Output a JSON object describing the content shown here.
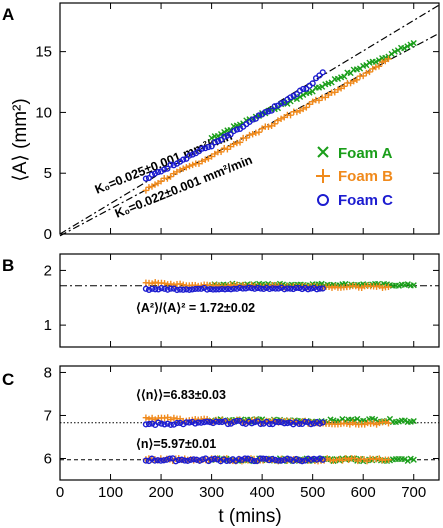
{
  "chart_data": [
    {
      "panel": "A",
      "type": "scatter",
      "ylabel": "⟨A⟩ (mm²)",
      "xlim": [
        0,
        750
      ],
      "ylim": [
        0,
        19
      ],
      "yticks": [
        0,
        5,
        10,
        15
      ],
      "series": [
        {
          "name": "Foam A",
          "marker": "x",
          "color": "#1a9e1a",
          "x": [
            300,
            350,
            400,
            450,
            500,
            550,
            600,
            650,
            700
          ],
          "y": [
            7.9,
            8.9,
            9.9,
            10.8,
            11.8,
            12.8,
            13.8,
            14.7,
            15.7
          ]
        },
        {
          "name": "Foam B",
          "marker": "+",
          "color": "#f08a1c",
          "x": [
            170,
            200,
            250,
            300,
            350,
            400,
            450,
            500,
            550,
            600,
            650
          ],
          "y": [
            3.6,
            4.4,
            5.4,
            6.4,
            7.5,
            8.6,
            9.7,
            10.8,
            11.9,
            13.1,
            14.4
          ]
        },
        {
          "name": "Foam C",
          "marker": "o",
          "color": "#1c1cd0",
          "x": [
            170,
            200,
            250,
            300,
            350,
            400,
            450,
            500,
            520
          ],
          "y": [
            4.5,
            5.2,
            6.3,
            7.3,
            8.5,
            9.8,
            11.0,
            12.4,
            13.3
          ]
        }
      ],
      "fits": [
        {
          "label": "K₀=0.025±0.001 mm²/min",
          "slope": 0.0251,
          "intercept": 0.0,
          "style": "dash-dot"
        },
        {
          "label": "K₀=0.022±0.001 mm²/min",
          "slope": 0.0222,
          "intercept": -0.15,
          "style": "dash-dot"
        }
      ],
      "annotations": [
        "K₀=0.025±0.001 mm²/min",
        "K₀=0.022±0.001 mm²/min"
      ]
    },
    {
      "panel": "B",
      "type": "scatter",
      "ylabel": "",
      "xlim": [
        0,
        750
      ],
      "ylim": [
        0.6,
        2.3
      ],
      "yticks": [
        1,
        2
      ],
      "reference_line": 1.72,
      "series": [
        {
          "name": "Foam A",
          "x": [
            300,
            400,
            500,
            600,
            700
          ],
          "y": [
            1.74,
            1.74,
            1.74,
            1.74,
            1.73
          ]
        },
        {
          "name": "Foam B",
          "x": [
            170,
            250,
            350,
            450,
            550,
            650
          ],
          "y": [
            1.78,
            1.73,
            1.72,
            1.71,
            1.7,
            1.7
          ]
        },
        {
          "name": "Foam C",
          "x": [
            170,
            250,
            350,
            450,
            520
          ],
          "y": [
            1.66,
            1.66,
            1.67,
            1.67,
            1.67
          ]
        }
      ],
      "annotation": "⟨A²⟩/⟨A⟩² = 1.72±0.02"
    },
    {
      "panel": "C",
      "type": "scatter",
      "ylabel": "",
      "xlabel": "t (mins)",
      "xlim": [
        0,
        750
      ],
      "ylim": [
        5.5,
        8.15
      ],
      "yticks": [
        6,
        7,
        8
      ],
      "xticks": [
        0,
        100,
        200,
        300,
        400,
        500,
        600,
        700
      ],
      "reference_lines": [
        6.83,
        5.97
      ],
      "series": [
        {
          "name": "Foam A ⟨⟨n⟩⟩",
          "x": [
            300,
            400,
            500,
            600,
            700
          ],
          "y": [
            6.9,
            6.88,
            6.86,
            6.9,
            6.87
          ]
        },
        {
          "name": "Foam B ⟨⟨n⟩⟩",
          "x": [
            170,
            250,
            350,
            450,
            550,
            650
          ],
          "y": [
            6.95,
            6.9,
            6.87,
            6.85,
            6.82,
            6.82
          ]
        },
        {
          "name": "Foam C ⟨⟨n⟩⟩",
          "x": [
            170,
            250,
            350,
            450,
            520
          ],
          "y": [
            6.8,
            6.82,
            6.84,
            6.82,
            6.84
          ]
        },
        {
          "name": "Foam A ⟨n⟩",
          "x": [
            300,
            400,
            500,
            600,
            700
          ],
          "y": [
            5.98,
            5.97,
            5.97,
            5.97,
            5.97
          ]
        },
        {
          "name": "Foam B ⟨n⟩",
          "x": [
            170,
            300,
            450,
            650
          ],
          "y": [
            5.98,
            5.97,
            5.97,
            5.97
          ]
        },
        {
          "name": "Foam C ⟨n⟩",
          "x": [
            170,
            300,
            450,
            520
          ],
          "y": [
            5.97,
            5.97,
            5.97,
            5.97
          ]
        }
      ],
      "annotations": [
        "⟨⟨n⟩⟩=6.83±0.03",
        "⟨n⟩=5.97±0.01"
      ]
    }
  ]
}
